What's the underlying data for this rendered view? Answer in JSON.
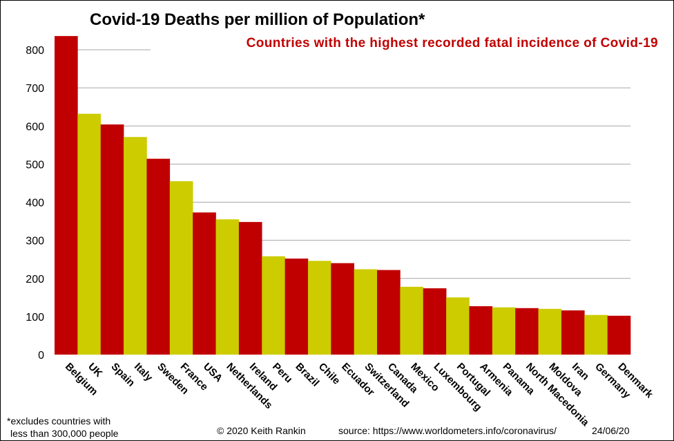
{
  "chart_data": {
    "type": "bar",
    "title": "Covid-19 Deaths per million of Population*",
    "subtitle": "Countries with the highest recorded fatal incidence of Covid-19",
    "categories": [
      "Belgium",
      "UK",
      "Spain",
      "Italy",
      "Sweden",
      "France",
      "USA",
      "Netherlands",
      "Ireland",
      "Peru",
      "Brazil",
      "Chile",
      "Ecuador",
      "Switzerland",
      "Canada",
      "Mexico",
      "Luxembourg",
      "Portugal",
      "Armenia",
      "Panama",
      "North Macedonia",
      "Moldova",
      "Iran",
      "Germany",
      "Denmark"
    ],
    "values": [
      836,
      632,
      604,
      571,
      514,
      455,
      373,
      355,
      348,
      258,
      252,
      246,
      240,
      224,
      222,
      178,
      174,
      150,
      127,
      124,
      122,
      120,
      116,
      104,
      102
    ],
    "ylim": [
      0,
      800
    ],
    "yticks": [
      0,
      100,
      200,
      300,
      400,
      500,
      600,
      700,
      800
    ],
    "grid": true,
    "legend": "none",
    "bar_colors": [
      "#c00000",
      "#cccc00"
    ],
    "gridline_color": "#a6a6a6"
  },
  "colors": {
    "subtitle": "#c00000"
  },
  "footer": {
    "note_line1": "*excludes countries with",
    "note_line2": "less than 300,000 people",
    "copyright": "© 2020  Keith Rankin",
    "source": "source: https://www.worldometers.info/coronavirus/",
    "date": "24/06/20"
  }
}
